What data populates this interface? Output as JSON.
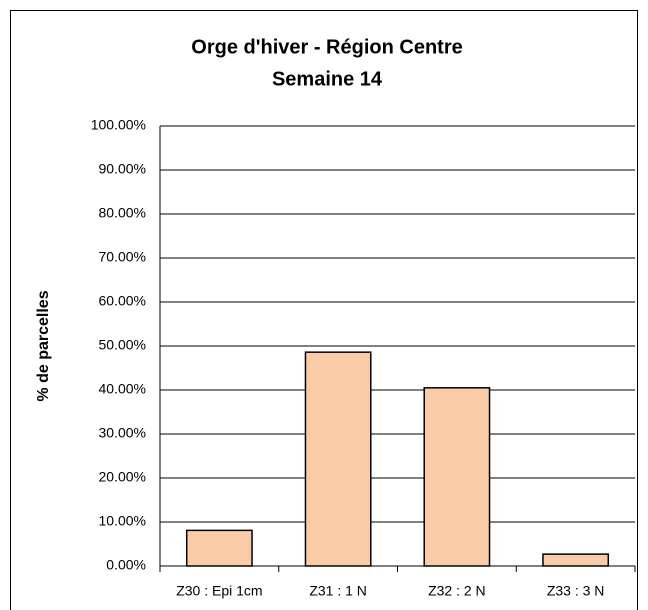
{
  "chart_data": {
    "type": "bar",
    "title": "Orge d'hiver - Région Centre",
    "subtitle": "Semaine 14",
    "y_label": "% de parcelles",
    "categories": [
      "Z30 : Epi 1cm",
      "Z31 : 1 N",
      "Z32 : 2 N",
      "Z33 : 3 N"
    ],
    "values": [
      8.1,
      48.6,
      40.5,
      2.7
    ],
    "color": "#f9cba6",
    "ylim": [
      0,
      100
    ],
    "yticks": [
      {
        "value": 0,
        "label": "0.00%"
      },
      {
        "value": 10,
        "label": "10.00%"
      },
      {
        "value": 20,
        "label": "20.00%"
      },
      {
        "value": 30,
        "label": "30.00%"
      },
      {
        "value": 40,
        "label": "40.00%"
      },
      {
        "value": 50,
        "label": "50.00%"
      },
      {
        "value": 60,
        "label": "60.00%"
      },
      {
        "value": 70,
        "label": "70.00%"
      },
      {
        "value": 80,
        "label": "80.00%"
      },
      {
        "value": 90,
        "label": "90.00%"
      },
      {
        "value": 100,
        "label": "100.00%"
      }
    ],
    "grid": true
  }
}
